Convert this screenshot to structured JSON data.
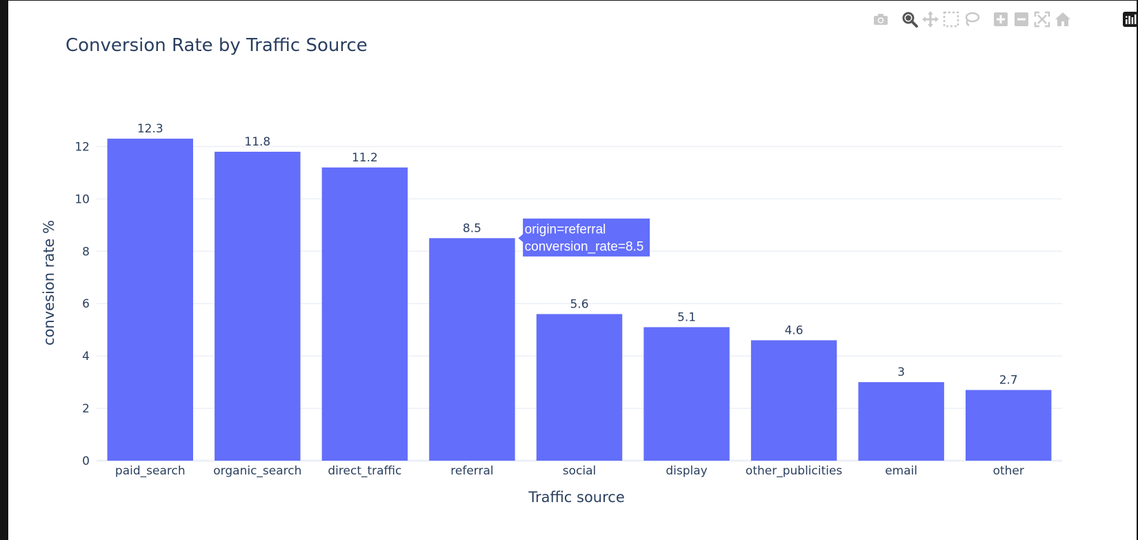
{
  "modebar": {
    "buttons": [
      "camera-icon",
      "zoom-icon",
      "pan-icon",
      "box-select-icon",
      "lasso-select-icon",
      "zoom-in-icon",
      "zoom-out-icon",
      "autoscale-icon",
      "home-icon"
    ],
    "active": "zoom-icon",
    "logo": "plotly-logo-icon"
  },
  "colors": {
    "bar": "#636efa",
    "text": "#2a3f5f",
    "grid": "#ebf0f8"
  },
  "chart_data": {
    "type": "bar",
    "title": "Conversion Rate by Traffic Source",
    "xlabel": "Traffic source",
    "ylabel": "convesion rate %",
    "categories": [
      "paid_search",
      "organic_search",
      "direct_traffic",
      "referral",
      "social",
      "display",
      "other_publicities",
      "email",
      "other"
    ],
    "values": [
      12.3,
      11.8,
      11.2,
      8.5,
      5.6,
      5.1,
      4.6,
      3,
      2.7
    ],
    "bar_labels": [
      "12.3",
      "11.8",
      "11.2",
      "8.5",
      "5.6",
      "5.1",
      "4.6",
      "3",
      "2.7"
    ],
    "ylim": [
      0,
      12.96
    ],
    "yticks": [
      0,
      2,
      4,
      6,
      8,
      10,
      12
    ],
    "grid": true,
    "hover": {
      "category": "referral",
      "lines": [
        "origin=referral",
        "conversion_rate=8.5"
      ]
    }
  }
}
